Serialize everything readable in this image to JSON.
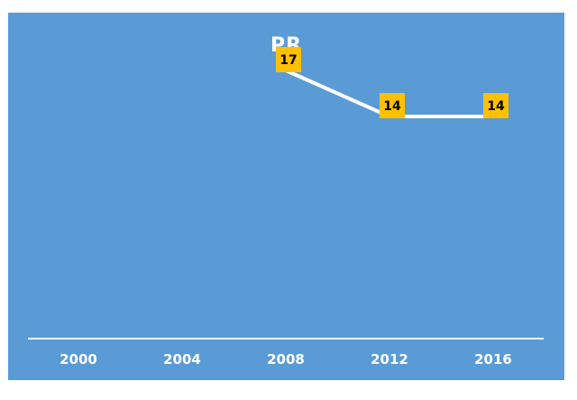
{
  "chart_data": {
    "type": "line",
    "title": "PR",
    "categories": [
      "2000",
      "2004",
      "2008",
      "2012",
      "2016"
    ],
    "series": [
      {
        "values": [
          null,
          null,
          17,
          14,
          14
        ]
      }
    ],
    "data_labels": [
      "",
      "",
      "17",
      "14",
      "14"
    ],
    "xlabel": "",
    "ylabel": "",
    "ylim": [
      0,
      20
    ],
    "grid": false,
    "legend": "none",
    "colors": {
      "background": "#5b9bd5",
      "line": "#ffffff",
      "label_box": "#ffc000",
      "label_text": "#000000",
      "axis_text": "#ffffff"
    }
  }
}
